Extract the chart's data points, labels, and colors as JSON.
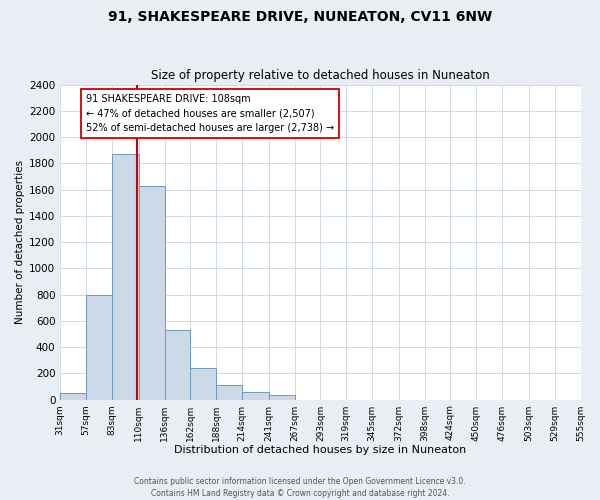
{
  "title": "91, SHAKESPEARE DRIVE, NUNEATON, CV11 6NW",
  "subtitle": "Size of property relative to detached houses in Nuneaton",
  "xlabel": "Distribution of detached houses by size in Nuneaton",
  "ylabel": "Number of detached properties",
  "bin_labels": [
    "31sqm",
    "57sqm",
    "83sqm",
    "110sqm",
    "136sqm",
    "162sqm",
    "188sqm",
    "214sqm",
    "241sqm",
    "267sqm",
    "293sqm",
    "319sqm",
    "345sqm",
    "372sqm",
    "398sqm",
    "424sqm",
    "450sqm",
    "476sqm",
    "503sqm",
    "529sqm",
    "555sqm"
  ],
  "bin_edges": [
    31,
    57,
    83,
    110,
    136,
    162,
    188,
    214,
    241,
    267,
    293,
    319,
    345,
    372,
    398,
    424,
    450,
    476,
    503,
    529,
    555
  ],
  "bar_heights": [
    50,
    800,
    1870,
    1630,
    530,
    240,
    110,
    55,
    35,
    0,
    0,
    0,
    0,
    0,
    0,
    0,
    0,
    0,
    0,
    0
  ],
  "bar_color": "#ccd9e8",
  "bar_edgecolor": "#7099bb",
  "ylim": [
    0,
    2400
  ],
  "yticks": [
    0,
    200,
    400,
    600,
    800,
    1000,
    1200,
    1400,
    1600,
    1800,
    2000,
    2200,
    2400
  ],
  "vline_x": 108,
  "vline_color": "#cc0000",
  "annotation_title": "91 SHAKESPEARE DRIVE: 108sqm",
  "annotation_line1": "← 47% of detached houses are smaller (2,507)",
  "annotation_line2": "52% of semi-detached houses are larger (2,738) →",
  "annotation_box_facecolor": "#ffffff",
  "annotation_box_edgecolor": "#cc0000",
  "footer_line1": "Contains HM Land Registry data © Crown copyright and database right 2024.",
  "footer_line2": "Contains public sector information licensed under the Open Government Licence v3.0.",
  "background_color": "#e8eef4",
  "plot_bg_color": "#ffffff",
  "grid_color": "#c8d4de"
}
